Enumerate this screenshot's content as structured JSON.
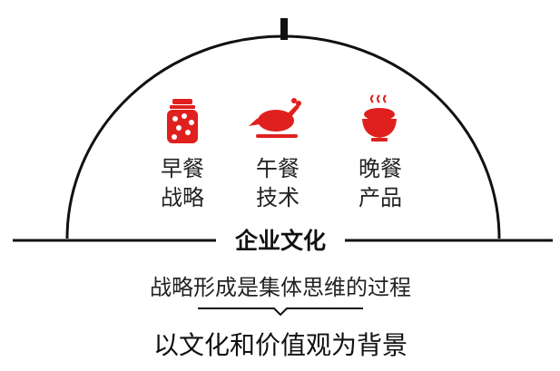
{
  "items": [
    {
      "icon": "jar-icon",
      "line1": "早餐",
      "line2": "战略"
    },
    {
      "icon": "roast-chicken-icon",
      "line1": "午餐",
      "line2": "技术"
    },
    {
      "icon": "food-bowl-icon",
      "line1": "晚餐",
      "line2": "产品"
    }
  ],
  "banner": {
    "label": "企业文化"
  },
  "subtitle": "战略形成是集体思维的过程",
  "caption": "以文化和价值观为背景",
  "colors": {
    "accent": "#e0201e",
    "ink": "#111111"
  }
}
